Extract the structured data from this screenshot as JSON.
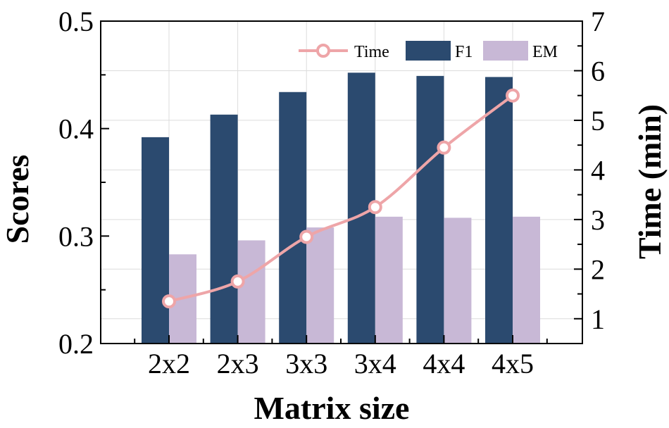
{
  "chart_data": {
    "type": "bar",
    "xlabel": "Matrix size",
    "ylabel": "Scores",
    "y2label": "Time (min)",
    "categories": [
      "2x2",
      "2x3",
      "3x3",
      "3x4",
      "4x4",
      "4x5"
    ],
    "ylim": [
      0.2,
      0.5
    ],
    "y2lim": [
      0.5,
      7
    ],
    "yticks": [
      "0.2",
      "0.3",
      "0.4",
      "0.5"
    ],
    "y2ticks": [
      "1",
      "2",
      "3",
      "4",
      "5",
      "6",
      "7"
    ],
    "grid": true,
    "legend_position": "top-right",
    "series": [
      {
        "name": "F1",
        "type": "bar",
        "axis": "left",
        "color": "#2b4a6f",
        "values": [
          0.392,
          0.413,
          0.434,
          0.452,
          0.449,
          0.448
        ]
      },
      {
        "name": "EM",
        "type": "bar",
        "axis": "left",
        "color": "#c8b8d6",
        "values": [
          0.283,
          0.296,
          0.308,
          0.318,
          0.317,
          0.318
        ]
      },
      {
        "name": "Time",
        "type": "line",
        "axis": "right",
        "color": "#eea5a8",
        "values": [
          1.35,
          1.75,
          2.65,
          3.25,
          4.45,
          5.5
        ]
      }
    ],
    "legend_order": [
      "Time",
      "F1",
      "EM"
    ]
  }
}
